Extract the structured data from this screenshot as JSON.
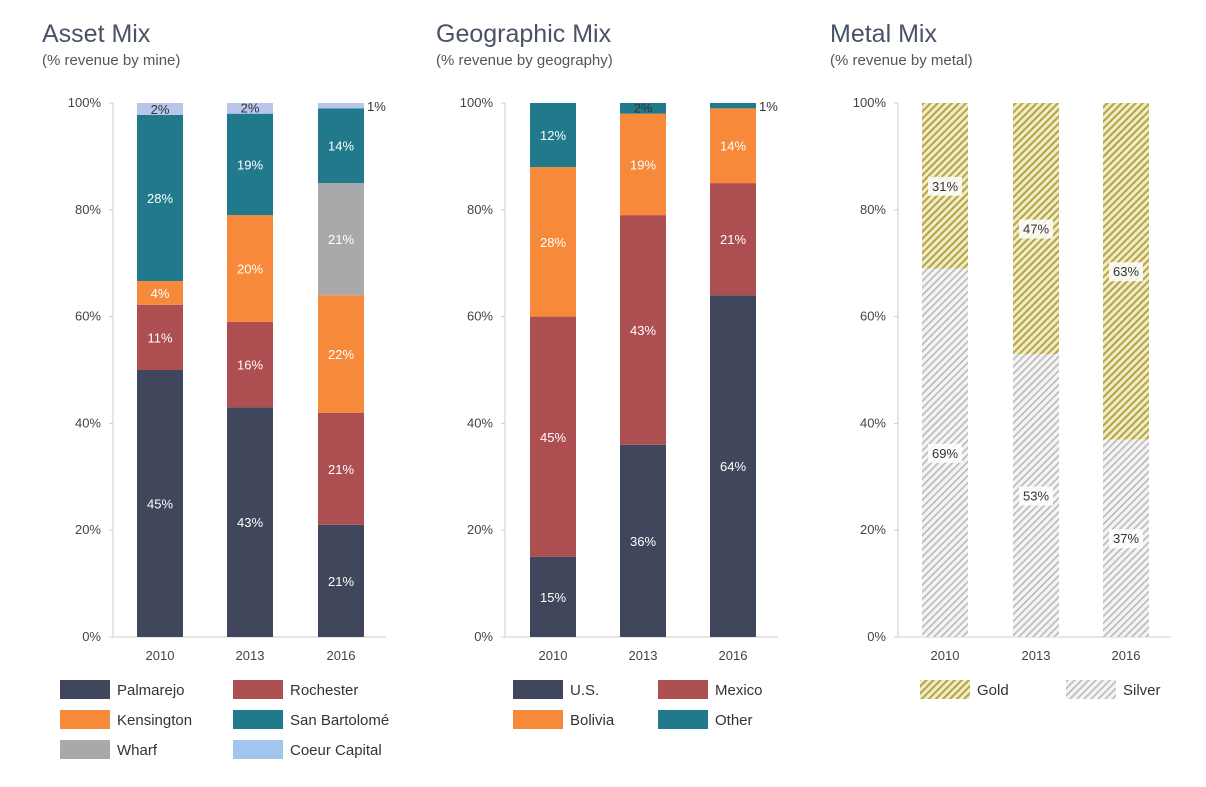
{
  "chart_data": [
    {
      "type": "bar",
      "stacked": true,
      "title": "Asset Mix",
      "subtitle": "(% revenue by mine)",
      "categories": [
        "2010",
        "2013",
        "2016"
      ],
      "yticks": [
        "0%",
        "20%",
        "40%",
        "60%",
        "80%",
        "100%"
      ],
      "ylim": [
        0,
        100
      ],
      "legend_position": "bottom",
      "series": [
        {
          "name": "Palmarejo",
          "color": "#40475c",
          "values": [
            45,
            43,
            21
          ]
        },
        {
          "name": "Rochester",
          "color": "#ad4e51",
          "values": [
            11,
            16,
            21
          ]
        },
        {
          "name": "Kensington",
          "color": "#f68a3a",
          "values": [
            4,
            20,
            22
          ]
        },
        {
          "name": "Wharf",
          "color": "#a9a9ab",
          "values": [
            0,
            0,
            21
          ]
        },
        {
          "name": "San Bartolomé",
          "color": "#217a8c",
          "values": [
            28,
            19,
            14
          ]
        },
        {
          "name": "Coeur Capital",
          "color": "#b8c6ec",
          "values": [
            2,
            2,
            1
          ]
        }
      ],
      "legend_order": [
        "Palmarejo",
        "Rochester",
        "Kensington",
        "San Bartolomé",
        "Wharf",
        "Coeur Capital"
      ]
    },
    {
      "type": "bar",
      "stacked": true,
      "title": "Geographic Mix",
      "subtitle": "(% revenue by geography)",
      "categories": [
        "2010",
        "2013",
        "2016"
      ],
      "yticks": [
        "0%",
        "20%",
        "40%",
        "60%",
        "80%",
        "100%"
      ],
      "ylim": [
        0,
        100
      ],
      "legend_position": "bottom",
      "series": [
        {
          "name": "U.S.",
          "color": "#40475c",
          "values": [
            15,
            36,
            64
          ]
        },
        {
          "name": "Mexico",
          "color": "#ad4e51",
          "values": [
            45,
            43,
            21
          ]
        },
        {
          "name": "Bolivia",
          "color": "#f68a3a",
          "values": [
            28,
            19,
            14
          ]
        },
        {
          "name": "Other",
          "color": "#217a8c",
          "values": [
            12,
            2,
            1
          ]
        }
      ],
      "legend_order": [
        "U.S.",
        "Mexico",
        "Bolivia",
        "Other"
      ]
    },
    {
      "type": "bar",
      "stacked": true,
      "title": "Metal Mix",
      "subtitle": "(% revenue by metal)",
      "categories": [
        "2010",
        "2013",
        "2016"
      ],
      "yticks": [
        "0%",
        "20%",
        "40%",
        "60%",
        "80%",
        "100%"
      ],
      "ylim": [
        0,
        100
      ],
      "legend_position": "bottom",
      "series": [
        {
          "name": "Silver",
          "color": "#b9b9b9",
          "pattern": "hatched",
          "values": [
            69,
            53,
            37
          ]
        },
        {
          "name": "Gold",
          "color": "#b3a545",
          "pattern": "hatched",
          "values": [
            31,
            47,
            63
          ]
        }
      ],
      "legend_order": [
        "Gold",
        "Silver"
      ]
    }
  ]
}
